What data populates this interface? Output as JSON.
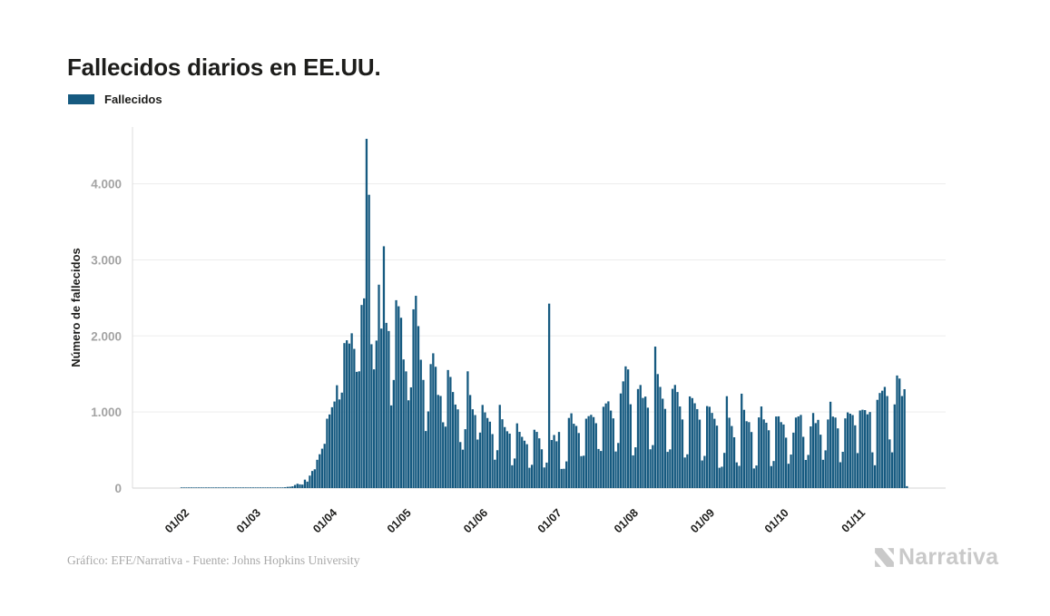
{
  "header": {
    "title": "Fallecidos diarios en EE.UU."
  },
  "legend": {
    "label": "Fallecidos",
    "color": "#165a80"
  },
  "footer": {
    "credit": "Gráfico: EFE/Narrativa - Fuente: Johns Hopkins University",
    "brand": "Narrativa",
    "brand_color": "#c9c9c9"
  },
  "chart_data": {
    "type": "bar",
    "title": "Fallecidos diarios en EE.UU.",
    "series_name": "Fallecidos",
    "xlabel": "",
    "ylabel": "Número de fallecidos",
    "bar_color": "#165a80",
    "grid": "horizontal-only",
    "legend_position": "top-left",
    "ylim": [
      0,
      4800
    ],
    "y_ticks": [
      0,
      1000,
      2000,
      3000,
      4000
    ],
    "y_tick_labels": [
      "0",
      "1.000",
      "2.000",
      "3.000",
      "4.000"
    ],
    "x_unit": "day",
    "x_ticks": [
      {
        "label": "01/02",
        "day": 10
      },
      {
        "label": "01/03",
        "day": 39
      },
      {
        "label": "01/04",
        "day": 70
      },
      {
        "label": "01/05",
        "day": 100
      },
      {
        "label": "01/06",
        "day": 131
      },
      {
        "label": "01/07",
        "day": 161
      },
      {
        "label": "01/08",
        "day": 192
      },
      {
        "label": "01/09",
        "day": 223
      },
      {
        "label": "01/10",
        "day": 253
      },
      {
        "label": "01/11",
        "day": 284
      }
    ],
    "values": [
      0,
      0,
      0,
      0,
      0,
      0,
      0,
      0,
      0,
      0,
      1,
      1,
      1,
      1,
      1,
      1,
      1,
      1,
      1,
      1,
      1,
      1,
      1,
      1,
      1,
      1,
      1,
      1,
      1,
      1,
      1,
      1,
      1,
      1,
      1,
      1,
      1,
      1,
      1,
      1,
      5,
      3,
      2,
      2,
      3,
      4,
      3,
      4,
      6,
      8,
      7,
      9,
      11,
      16,
      18,
      23,
      41,
      57,
      49,
      46,
      111,
      85,
      164,
      225,
      247,
      372,
      445,
      518,
      582,
      912,
      968,
      1063,
      1138,
      1352,
      1165,
      1255,
      1906,
      1943,
      1900,
      2035,
      1830,
      1528,
      1535,
      2407,
      2494,
      4591,
      3856,
      1891,
      1561,
      1939,
      2674,
      2097,
      3179,
      2172,
      2065,
      1087,
      1421,
      2470,
      2390,
      2239,
      1691,
      1534,
      1154,
      1324,
      2350,
      2528,
      2129,
      1687,
      1422,
      750,
      1008,
      1630,
      1772,
      1595,
      1225,
      1211,
      865,
      808,
      1552,
      1461,
      1263,
      1098,
      1035,
      605,
      505,
      774,
      1535,
      1223,
      1036,
      960,
      638,
      730,
      1093,
      995,
      921,
      873,
      710,
      373,
      498,
      1094,
      905,
      802,
      747,
      716,
      300,
      389,
      851,
      739,
      674,
      623,
      577,
      267,
      306,
      767,
      739,
      654,
      510,
      271,
      335,
      2425,
      632,
      698,
      615,
      738,
      252,
      254,
      351,
      922,
      983,
      846,
      817,
      724,
      420,
      426,
      912,
      946,
      963,
      933,
      853,
      514,
      488,
      1069,
      1113,
      1140,
      1019,
      916,
      481,
      593,
      1244,
      1403,
      1600,
      1560,
      1102,
      430,
      536,
      1302,
      1355,
      1185,
      1203,
      1057,
      510,
      565,
      1860,
      1499,
      1330,
      1175,
      1041,
      476,
      509,
      1305,
      1356,
      1263,
      1073,
      902,
      402,
      444,
      1205,
      1183,
      1115,
      1038,
      900,
      363,
      423,
      1078,
      1069,
      988,
      911,
      821,
      267,
      281,
      463,
      1208,
      925,
      816,
      668,
      338,
      292,
      1241,
      1029,
      879,
      867,
      737,
      258,
      297,
      929,
      1073,
      903,
      859,
      760,
      289,
      356,
      941,
      943,
      867,
      836,
      663,
      320,
      441,
      729,
      927,
      942,
      962,
      674,
      370,
      436,
      811,
      987,
      854,
      897,
      702,
      372,
      496,
      902,
      1135,
      940,
      927,
      785,
      340,
      477,
      916,
      995,
      978,
      960,
      825,
      460,
      1020,
      1030,
      1025,
      970,
      1000,
      470,
      300,
      1160,
      1250,
      1280,
      1330,
      1210,
      640,
      470,
      1100,
      1480,
      1440,
      1210,
      1300,
      25
    ]
  }
}
